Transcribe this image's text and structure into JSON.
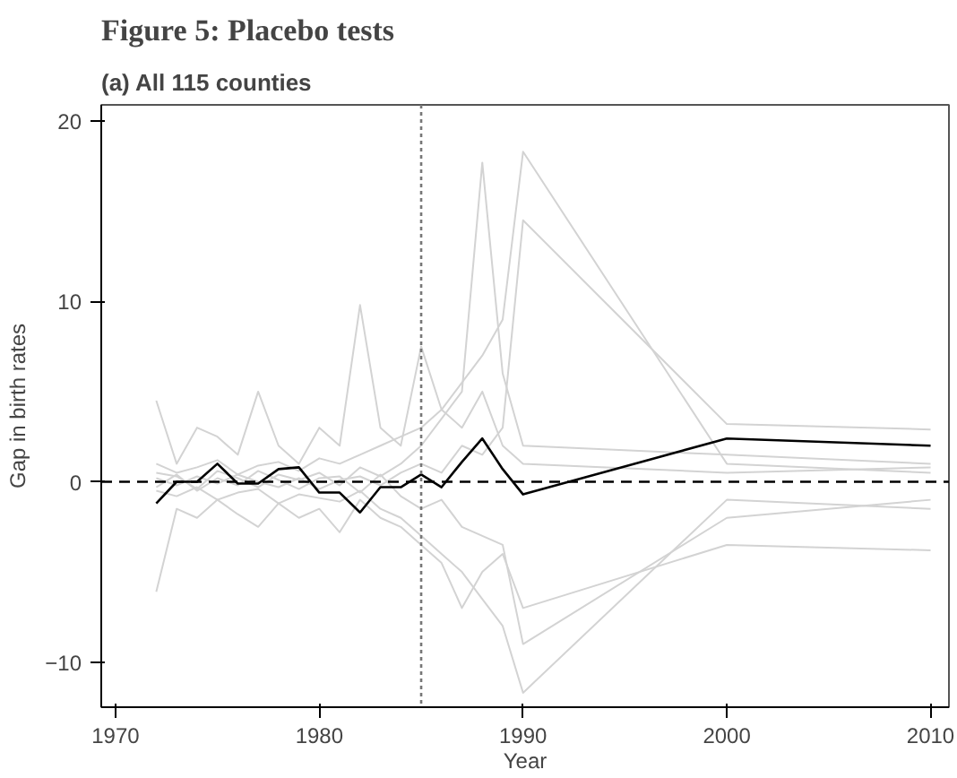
{
  "chart_data": {
    "type": "line",
    "title": "Figure 5: Placebo tests",
    "subtitle": "(a) All 115 counties",
    "xlabel": "Year",
    "ylabel": "Gap in birth rates",
    "x": [
      1972,
      1973,
      1974,
      1975,
      1976,
      1977,
      1978,
      1979,
      1980,
      1981,
      1982,
      1983,
      1984,
      1985,
      1986,
      1987,
      1988,
      1989,
      1990,
      2000,
      2010
    ],
    "series": [
      {
        "color": "#d3d3d3",
        "values": [
          0.5,
          0.3,
          -0.4,
          0.6,
          0.2,
          -0.3,
          0.4,
          0.1,
          0.5,
          -0.2,
          0.8,
          0.3,
          1.0,
          2.0,
          3.5,
          5.0,
          17.7,
          6.0,
          2.0,
          1.5,
          1.0
        ]
      },
      {
        "color": "#d3d3d3",
        "values": [
          1.0,
          0.5,
          0.8,
          1.2,
          0.4,
          0.9,
          1.1,
          0.6,
          1.3,
          1.0,
          1.5,
          2.0,
          2.5,
          3.0,
          4.0,
          5.5,
          7.0,
          9.0,
          18.3,
          1.0,
          0.5
        ]
      },
      {
        "color": "#d3d3d3",
        "values": [
          -0.5,
          -0.8,
          -0.3,
          -1.0,
          -0.6,
          -0.4,
          -1.2,
          -0.7,
          -0.9,
          -1.1,
          -0.5,
          -1.5,
          -2.0,
          -3.0,
          -4.0,
          -5.0,
          -6.5,
          -8.0,
          -11.7,
          -1.0,
          -1.5
        ]
      },
      {
        "color": "#d3d3d3",
        "values": [
          4.5,
          1.0,
          3.0,
          2.5,
          1.5,
          5.0,
          2.0,
          1.0,
          3.0,
          2.0,
          9.8,
          3.0,
          2.0,
          7.5,
          4.0,
          3.0,
          5.0,
          2.0,
          1.0,
          0.5,
          0.8
        ]
      },
      {
        "color": "#d3d3d3",
        "values": [
          -6.1,
          -1.5,
          -2.0,
          -1.0,
          -1.8,
          -2.5,
          -1.2,
          -2.0,
          -1.5,
          -2.8,
          -1.0,
          -2.0,
          -2.5,
          -3.5,
          -4.5,
          -7.0,
          -5.0,
          -4.0,
          -7.0,
          -3.5,
          -3.8
        ]
      },
      {
        "color": "#d3d3d3",
        "values": [
          0.2,
          -0.2,
          0.3,
          -0.1,
          0.4,
          0.0,
          -0.3,
          0.2,
          -0.4,
          0.1,
          0.3,
          -0.2,
          0.5,
          1.0,
          0.5,
          2.0,
          1.5,
          3.0,
          14.5,
          3.2,
          2.9
        ]
      },
      {
        "color": "#d3d3d3",
        "values": [
          -0.3,
          0.4,
          -0.5,
          0.2,
          -0.2,
          0.6,
          0.1,
          -0.4,
          0.2,
          0.3,
          -0.6,
          0.4,
          -0.8,
          -1.5,
          -1.0,
          -2.5,
          -3.0,
          -3.5,
          -9.0,
          -2.0,
          -1.0
        ]
      },
      {
        "color": "#000000",
        "values": [
          -1.2,
          0.0,
          0.0,
          1.0,
          -0.1,
          -0.1,
          0.7,
          0.8,
          -0.6,
          -0.6,
          -1.7,
          -0.3,
          -0.3,
          0.4,
          -0.3,
          1.1,
          2.4,
          0.7,
          -0.7,
          2.4,
          2.0
        ]
      }
    ],
    "xlim": [
      1969.3,
      2010.9
    ],
    "ylim": [
      -12.5,
      20.9
    ],
    "xticks": [
      1970,
      1980,
      1990,
      2000,
      2010
    ],
    "yticks": [
      -10,
      0,
      10,
      20
    ],
    "ref_lines": [
      {
        "axis": "y",
        "value": 0,
        "color": "#000000",
        "line_style": "dashed"
      },
      {
        "axis": "x",
        "value": 1985,
        "color": "#777777",
        "line_style": "dotted"
      }
    ],
    "grid": false
  }
}
